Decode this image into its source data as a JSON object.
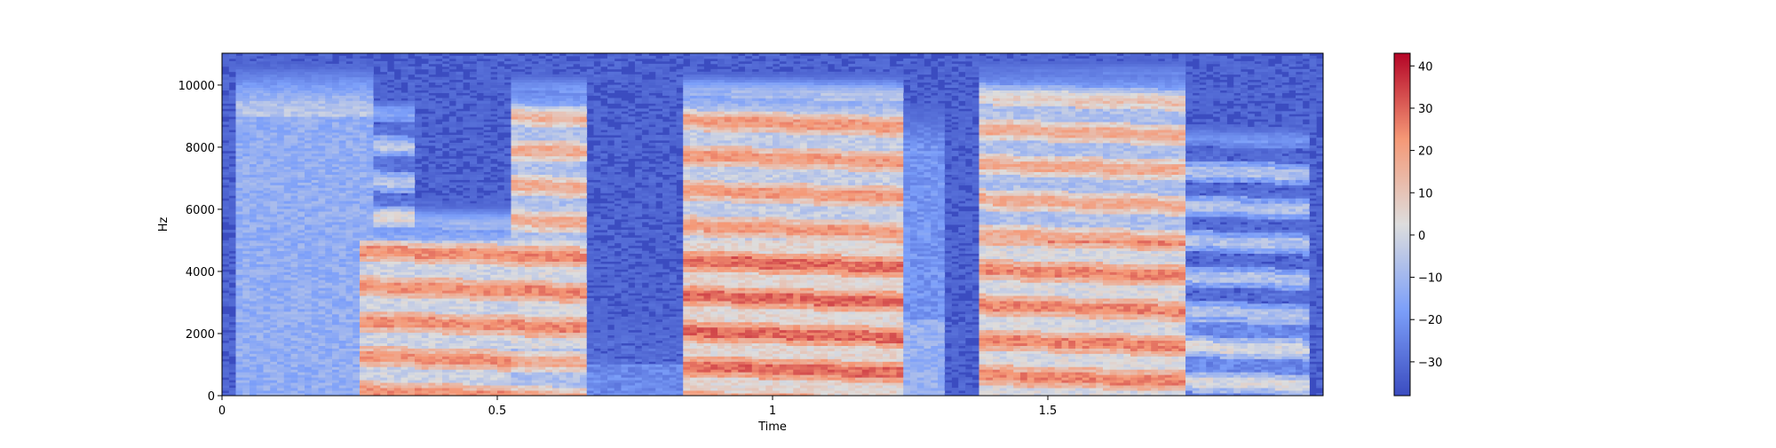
{
  "chart_data": {
    "type": "heatmap",
    "xlabel": "Time",
    "ylabel": "Hz",
    "xlim": [
      0,
      2.0
    ],
    "ylim": [
      0,
      11025
    ],
    "xticks": [
      {
        "value": 0,
        "label": "0"
      },
      {
        "value": 0.5,
        "label": "0.5"
      },
      {
        "value": 1.0,
        "label": "1"
      },
      {
        "value": 1.5,
        "label": "1.5"
      }
    ],
    "yticks": [
      {
        "value": 0,
        "label": "0"
      },
      {
        "value": 2000,
        "label": "2000"
      },
      {
        "value": 4000,
        "label": "4000"
      },
      {
        "value": 6000,
        "label": "6000"
      },
      {
        "value": 8000,
        "label": "8000"
      },
      {
        "value": 10000,
        "label": "10000"
      }
    ],
    "colorbar": {
      "colormap": "coolwarm",
      "min": -38,
      "max": 43,
      "ticks": [
        {
          "value": 40,
          "label": "40"
        },
        {
          "value": 30,
          "label": "30"
        },
        {
          "value": 20,
          "label": "20"
        },
        {
          "value": 10,
          "label": "10"
        },
        {
          "value": 0,
          "label": "0"
        },
        {
          "value": -10,
          "label": "−10"
        },
        {
          "value": -20,
          "label": "−20"
        },
        {
          "value": -30,
          "label": "−30"
        }
      ]
    },
    "segments": [
      {
        "t0": 0.02,
        "t1": 0.27,
        "level": -8,
        "fmax": 10800,
        "peak": [
          9000,
          10500
        ],
        "harmonics": false
      },
      {
        "t0": 0.27,
        "t1": 0.35,
        "level": -10,
        "fmax": 10000,
        "peak": [
          3000,
          6000
        ],
        "harmonics": true
      },
      {
        "t0": 0.25,
        "t1": 0.52,
        "level": 10,
        "fmax": 6300,
        "peak": [
          0,
          5000
        ],
        "harmonics": true
      },
      {
        "t0": 0.52,
        "t1": 0.66,
        "level": 12,
        "fmax": 10400,
        "peak": [
          1500,
          5000
        ],
        "harmonics": true
      },
      {
        "t0": 0.66,
        "t1": 0.84,
        "level": -26,
        "fmax": 3000,
        "peak": [
          0,
          1000
        ],
        "harmonics": false
      },
      {
        "t0": 0.84,
        "t1": 1.24,
        "level": 16,
        "fmax": 10500,
        "peak": [
          0,
          5000
        ],
        "harmonics": true
      },
      {
        "t0": 1.24,
        "t1": 1.31,
        "level": -15,
        "fmax": 9500,
        "peak": [
          0,
          2500
        ],
        "harmonics": false
      },
      {
        "t0": 1.31,
        "t1": 1.37,
        "level": -36,
        "fmax": 1000,
        "peak": [
          0,
          500
        ],
        "harmonics": false
      },
      {
        "t0": 1.37,
        "t1": 1.75,
        "level": 12,
        "fmax": 10800,
        "peak": [
          0,
          5000
        ],
        "harmonics": true
      },
      {
        "t0": 1.75,
        "t1": 1.98,
        "level": -12,
        "fmax": 9000,
        "peak": [
          0,
          2500
        ],
        "harmonics": true
      }
    ]
  }
}
